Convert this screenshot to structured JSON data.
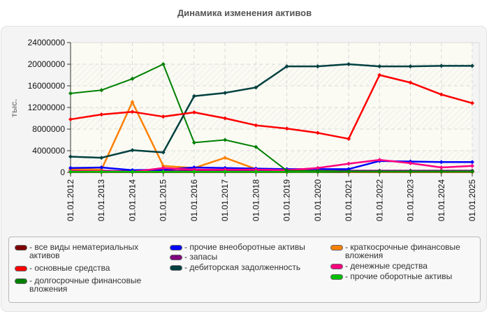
{
  "title": "Динамика изменения активов",
  "chart_data": {
    "type": "line",
    "title": "Динамика изменения активов",
    "xlabel": "",
    "ylabel": "тыс.",
    "ylim": [
      0,
      24000000
    ],
    "yticks": [
      0,
      4000000,
      8000000,
      12000000,
      16000000,
      20000000,
      24000000
    ],
    "grid": true,
    "legend_position": "bottom",
    "categories": [
      "01.01.2012",
      "01.01.2013",
      "01.01.2014",
      "01.01.2015",
      "01.01.2016",
      "01.01.2017",
      "01.01.2018",
      "01.01.2019",
      "01.01.2020",
      "01.01.2021",
      "01.01.2022",
      "01.01.2023",
      "01.01.2024",
      "01.01.2025"
    ],
    "series": [
      {
        "name": "все виды нематериальных активов",
        "color": "#7f0000",
        "values": [
          50000,
          50000,
          50000,
          50000,
          50000,
          50000,
          50000,
          50000,
          50000,
          50000,
          50000,
          50000,
          50000,
          50000
        ]
      },
      {
        "name": "основные средства",
        "color": "#ff0000",
        "values": [
          9800000,
          10700000,
          11200000,
          10300000,
          11100000,
          10000000,
          8700000,
          8100000,
          7300000,
          6200000,
          18000000,
          16600000,
          14400000,
          12800000
        ]
      },
      {
        "name": "долгосрочные финансовые вложения",
        "color": "#008000",
        "values": [
          14600000,
          15200000,
          17300000,
          20000000,
          5500000,
          6000000,
          4700000,
          300000,
          250000,
          200000,
          200000,
          200000,
          200000,
          200000
        ]
      },
      {
        "name": "прочие внеоборотные активы",
        "color": "#0000ff",
        "values": [
          800000,
          900000,
          400000,
          500000,
          900000,
          800000,
          700000,
          600000,
          600000,
          600000,
          2100000,
          2000000,
          1900000,
          1900000
        ]
      },
      {
        "name": "запасы",
        "color": "#800080",
        "values": [
          300000,
          300000,
          200000,
          300000,
          300000,
          300000,
          300000,
          300000,
          300000,
          300000,
          300000,
          300000,
          300000,
          300000
        ]
      },
      {
        "name": "дебиторская задолженность",
        "color": "#004040",
        "values": [
          2900000,
          2700000,
          4100000,
          3700000,
          14100000,
          14700000,
          15700000,
          19600000,
          19600000,
          20000000,
          19600000,
          19600000,
          19700000,
          19700000
        ]
      },
      {
        "name": "краткосрочные финансовые вложения",
        "color": "#ff8000",
        "values": [
          600000,
          500000,
          13000000,
          1200000,
          800000,
          2700000,
          600000,
          400000,
          300000,
          100000,
          100000,
          100000,
          100000,
          100000
        ]
      },
      {
        "name": "денежные средства",
        "color": "#ff0080",
        "values": [
          200000,
          200000,
          100000,
          800000,
          500000,
          500000,
          500000,
          400000,
          800000,
          1600000,
          2300000,
          1700000,
          900000,
          1200000
        ]
      },
      {
        "name": "прочие оборотные активы",
        "color": "#00c000",
        "values": [
          100000,
          100000,
          100000,
          100000,
          100000,
          100000,
          100000,
          100000,
          100000,
          150000,
          150000,
          150000,
          150000,
          150000
        ]
      }
    ]
  },
  "legend": {
    "items": [
      {
        "label": "- все виды нематериальных активов",
        "color": "#7f0000"
      },
      {
        "label": "- основные средства",
        "color": "#ff0000"
      },
      {
        "label": "- долгосрочные финансовые вложения",
        "color": "#008000"
      },
      {
        "label": "- прочие внеоборотные активы",
        "color": "#0000ff"
      },
      {
        "label": "- запасы",
        "color": "#800080"
      },
      {
        "label": "- дебиторская задолженность",
        "color": "#004040"
      },
      {
        "label": "- краткосрочные финансовые вложения",
        "color": "#ff8000"
      },
      {
        "label": "- денежные средства",
        "color": "#ff0080"
      },
      {
        "label": "- прочие оборотные активы",
        "color": "#00c000"
      }
    ]
  }
}
